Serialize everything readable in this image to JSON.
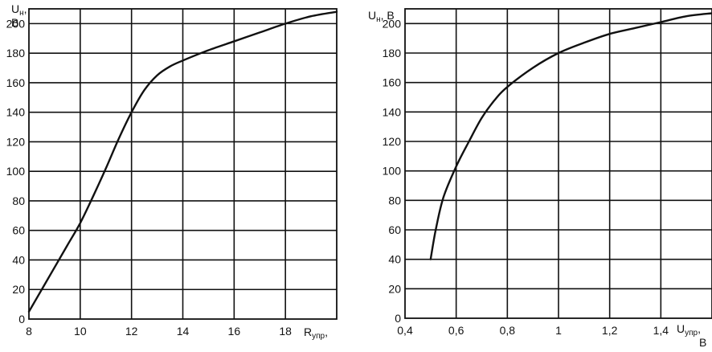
{
  "chart_data": [
    {
      "type": "line",
      "ylabel_main": "U",
      "ylabel_sub": "н",
      "ylabel_unit_line1": ",",
      "ylabel_unit_line2": "В",
      "xlabel_main": "R",
      "xlabel_sub": "упр",
      "xlabel_suffix": ",",
      "xlim": [
        8,
        20
      ],
      "ylim": [
        0,
        210
      ],
      "xticks": [
        8,
        10,
        12,
        14,
        16,
        18
      ],
      "xtick_labels": [
        "8",
        "10",
        "12",
        "14",
        "16",
        "18"
      ],
      "yticks": [
        0,
        20,
        40,
        60,
        80,
        100,
        120,
        140,
        160,
        180,
        200
      ],
      "ytick_labels": [
        "0",
        "20",
        "40",
        "60",
        "80",
        "100",
        "120",
        "140",
        "160",
        "180",
        "200"
      ],
      "grid": true,
      "series": [
        {
          "x": [
            8.0,
            8.5,
            9.0,
            9.5,
            10.0,
            10.5,
            11.0,
            11.5,
            12.0,
            12.5,
            13.0,
            13.5,
            14.0,
            15.0,
            16.0,
            17.0,
            18.0,
            19.0,
            20.0
          ],
          "y": [
            5,
            20,
            35,
            50,
            65,
            83,
            102,
            122,
            140,
            155,
            165,
            171,
            175,
            182,
            188,
            194,
            200,
            205,
            208
          ]
        }
      ]
    },
    {
      "type": "line",
      "ylabel_main": "U",
      "ylabel_sub": "н",
      "ylabel_unit": ", В",
      "xlabel_main": "U",
      "xlabel_sub": "упр",
      "xlabel_suffix": ",",
      "xlabel_unit": "В",
      "xlim": [
        0.4,
        1.6
      ],
      "ylim": [
        0,
        210
      ],
      "xticks": [
        0.4,
        0.6,
        0.8,
        1.0,
        1.2,
        1.4
      ],
      "xtick_labels": [
        "0,4",
        "0,6",
        "0,8",
        "1",
        "1,2",
        "1,4"
      ],
      "yticks": [
        0,
        20,
        40,
        60,
        80,
        100,
        120,
        140,
        160,
        180,
        200
      ],
      "ytick_labels": [
        "0",
        "20",
        "40",
        "60",
        "80",
        "100",
        "120",
        "140",
        "160",
        "180",
        "200"
      ],
      "grid": true,
      "series": [
        {
          "x": [
            0.5,
            0.52,
            0.55,
            0.6,
            0.65,
            0.7,
            0.75,
            0.8,
            0.9,
            1.0,
            1.1,
            1.2,
            1.3,
            1.4,
            1.5,
            1.6
          ],
          "y": [
            40,
            60,
            82,
            103,
            120,
            136,
            148,
            157,
            170,
            180,
            187,
            193,
            197,
            201,
            205,
            207
          ]
        }
      ]
    }
  ]
}
